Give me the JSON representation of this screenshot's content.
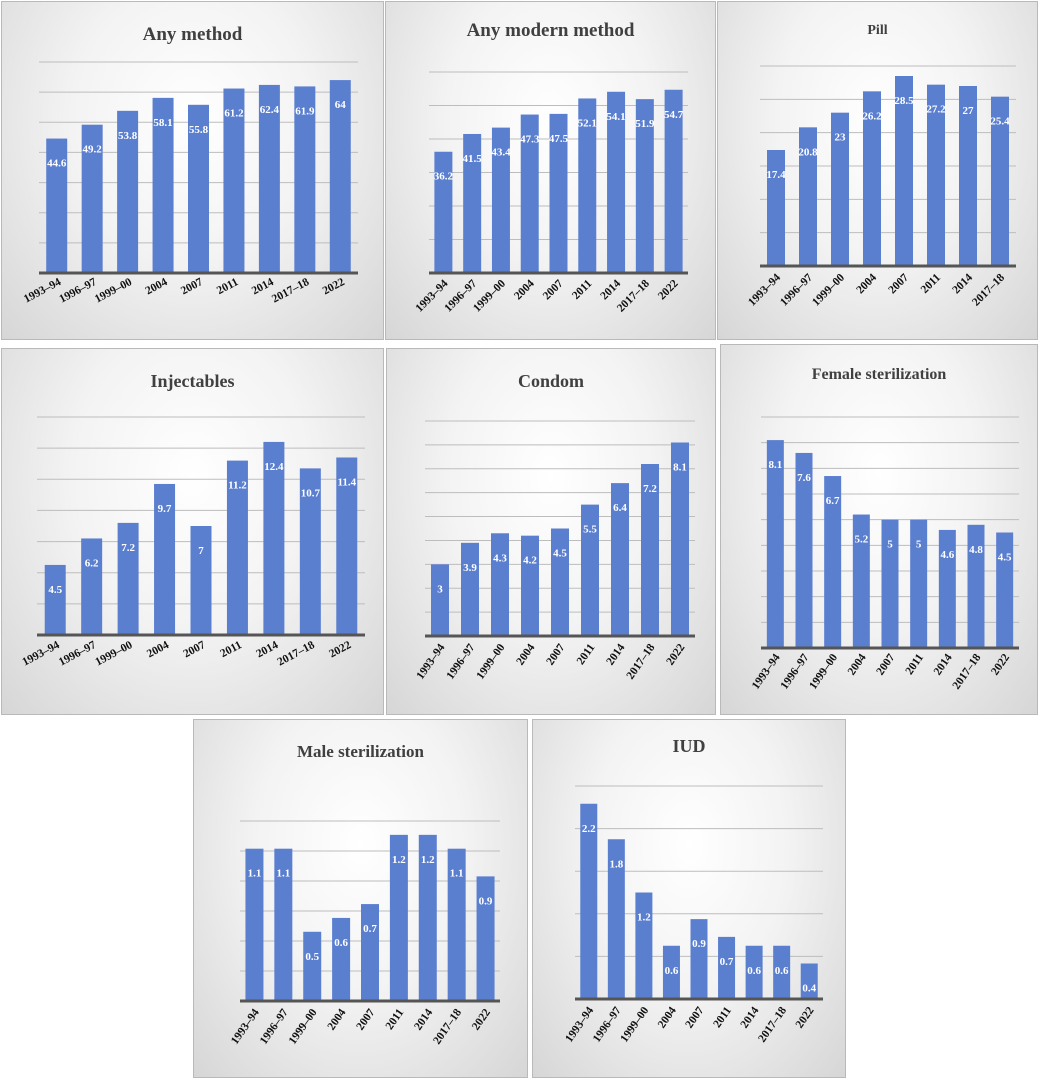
{
  "chart_data": [
    {
      "type": "bar",
      "title": "Any method",
      "categories": [
        "1993–94",
        "1996–97",
        "1999–00",
        "2004",
        "2007",
        "2011",
        "2014",
        "2017–18",
        "2022"
      ],
      "values": [
        44.6,
        49.2,
        53.8,
        58.1,
        55.8,
        61.2,
        62.4,
        61.9,
        64
      ],
      "ylim": [
        0,
        70
      ],
      "grid": true,
      "color": "#5b7fcf"
    },
    {
      "type": "bar",
      "title": "Any modern method",
      "categories": [
        "1993–94",
        "1996–97",
        "1999–00",
        "2004",
        "2007",
        "2011",
        "2014",
        "2017–18",
        "2022"
      ],
      "values": [
        36.2,
        41.5,
        43.4,
        47.3,
        47.5,
        52.1,
        54.1,
        51.9,
        54.7
      ],
      "ylim": [
        0,
        60
      ],
      "grid": true,
      "color": "#5b7fcf"
    },
    {
      "type": "bar",
      "title": "Pill",
      "categories": [
        "1993–94",
        "1996–97",
        "1999–00",
        "2004",
        "2007",
        "2011",
        "2014",
        "2017–18"
      ],
      "values": [
        17.4,
        20.8,
        23,
        26.2,
        28.5,
        27.2,
        27,
        25.4
      ],
      "ylim": [
        0,
        30
      ],
      "grid": true,
      "color": "#5b7fcf"
    },
    {
      "type": "bar",
      "title": "Injectables",
      "categories": [
        "1993–94",
        "1996–97",
        "1999–00",
        "2004",
        "2007",
        "2011",
        "2014",
        "2017–18",
        "2022"
      ],
      "values": [
        4.5,
        6.2,
        7.2,
        9.7,
        7,
        11.2,
        12.4,
        10.7,
        11.4
      ],
      "ylim": [
        0,
        14
      ],
      "grid": true,
      "color": "#5b7fcf"
    },
    {
      "type": "bar",
      "title": "Condom",
      "categories": [
        "1993–94",
        "1996–97",
        "1999–00",
        "2004",
        "2007",
        "2011",
        "2014",
        "2017–18",
        "2022"
      ],
      "values": [
        3,
        3.9,
        4.3,
        4.2,
        4.5,
        5.5,
        6.4,
        7.2,
        8.1
      ],
      "ylim": [
        0,
        9
      ],
      "grid": true,
      "color": "#5b7fcf"
    },
    {
      "type": "bar",
      "title": "Female sterilization",
      "categories": [
        "1993–94",
        "1996–97",
        "1999–00",
        "2004",
        "2007",
        "2011",
        "2014",
        "2017–18",
        "2022"
      ],
      "values": [
        8.1,
        7.6,
        6.7,
        5.2,
        5,
        5,
        4.6,
        4.8,
        4.5
      ],
      "ylim": [
        0,
        9
      ],
      "grid": true,
      "color": "#5b7fcf"
    },
    {
      "type": "bar",
      "title": "Male sterilization",
      "categories": [
        "1993–94",
        "1996–97",
        "1999–00",
        "2004",
        "2007",
        "2011",
        "2014",
        "2017–18",
        "2022"
      ],
      "values": [
        1.1,
        1.1,
        0.5,
        0.6,
        0.7,
        1.2,
        1.2,
        1.1,
        0.9
      ],
      "ylim": [
        0,
        1.3
      ],
      "grid": true,
      "color": "#5b7fcf"
    },
    {
      "type": "bar",
      "title": "IUD",
      "categories": [
        "1993–94",
        "1996–97",
        "1999–00",
        "2004",
        "2007",
        "2011",
        "2014",
        "2017–18",
        "2022"
      ],
      "values": [
        2.2,
        1.8,
        1.2,
        0.6,
        0.9,
        0.7,
        0.6,
        0.6,
        0.4
      ],
      "ylim": [
        0,
        2.4
      ],
      "grid": true,
      "color": "#5b7fcf"
    }
  ]
}
